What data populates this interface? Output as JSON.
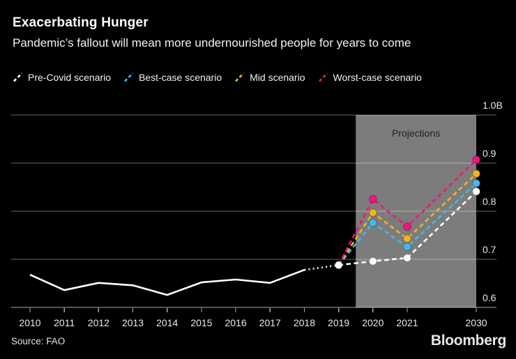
{
  "header": {
    "title": "Exacerbating Hunger",
    "subtitle": "Pandemic’s fallout will mean more undernourished people for years to come"
  },
  "legend": {
    "items": [
      {
        "label": "Pre-Covid scenario",
        "color": "#ffffff"
      },
      {
        "label": "Best-case scenario",
        "color": "#45b8e8"
      },
      {
        "label": "Mid scenario",
        "color": "#f2b322"
      },
      {
        "label": "Worst-case scenario",
        "color": "#f0147e"
      }
    ]
  },
  "chart_data": {
    "type": "line",
    "title": "Exacerbating Hunger",
    "unit": "billions of undernourished people",
    "ylim": [
      0.6,
      1.0
    ],
    "grid": true,
    "legend_position": "top",
    "yticks": [
      {
        "value": 1.0,
        "label": "1.0B"
      },
      {
        "value": 0.9,
        "label": "0.9"
      },
      {
        "value": 0.8,
        "label": "0.8"
      },
      {
        "value": 0.7,
        "label": "0.7"
      },
      {
        "value": 0.6,
        "label": "0.6"
      }
    ],
    "xticks": [
      2010,
      2011,
      2012,
      2013,
      2014,
      2015,
      2016,
      2017,
      2018,
      2019,
      2020,
      2021,
      2030
    ],
    "projection": {
      "label": "Projections",
      "from": 2019.5,
      "to": 2030,
      "band_color": "#7c7c7c",
      "label_color": "#212121"
    },
    "series": [
      {
        "name": "Best-case scenario",
        "color": "#45b8e8",
        "segments": [
          {
            "style": "dashed",
            "points": [
              [
                2019,
                0.688
              ],
              [
                2020,
                0.776
              ],
              [
                2021,
                0.726
              ],
              [
                2030,
                0.858
              ]
            ]
          }
        ],
        "markers": [
          [
            2020,
            0.776
          ],
          [
            2021,
            0.726
          ],
          [
            2030,
            0.858
          ]
        ]
      },
      {
        "name": "Mid scenario",
        "color": "#f2b322",
        "segments": [
          {
            "style": "dashed",
            "points": [
              [
                2019,
                0.688
              ],
              [
                2020,
                0.797
              ],
              [
                2021,
                0.743
              ],
              [
                2030,
                0.878
              ]
            ]
          }
        ],
        "markers": [
          [
            2020,
            0.797
          ],
          [
            2021,
            0.743
          ],
          [
            2030,
            0.878
          ]
        ]
      },
      {
        "name": "Worst-case scenario",
        "color": "#f0147e",
        "segments": [
          {
            "style": "dashed",
            "points": [
              [
                2019,
                0.688
              ],
              [
                2020,
                0.825
              ],
              [
                2021,
                0.768
              ],
              [
                2030,
                0.907
              ]
            ]
          }
        ],
        "markers": [
          [
            2020,
            0.825
          ],
          [
            2021,
            0.768
          ],
          [
            2030,
            0.907
          ]
        ]
      },
      {
        "name": "Pre-Covid scenario",
        "color": "#ffffff",
        "segments": [
          {
            "style": "solid",
            "points": [
              [
                2010,
                0.668
              ],
              [
                2011,
                0.636
              ],
              [
                2012,
                0.651
              ],
              [
                2013,
                0.646
              ],
              [
                2014,
                0.626
              ],
              [
                2015,
                0.652
              ],
              [
                2016,
                0.658
              ],
              [
                2017,
                0.651
              ],
              [
                2018,
                0.678
              ]
            ]
          },
          {
            "style": "dotted",
            "points": [
              [
                2018,
                0.678
              ],
              [
                2019,
                0.688
              ]
            ]
          },
          {
            "style": "dashed",
            "points": [
              [
                2019,
                0.688
              ],
              [
                2020,
                0.696
              ],
              [
                2021,
                0.703
              ],
              [
                2030,
                0.841
              ]
            ]
          }
        ],
        "markers": [
          [
            2019,
            0.688
          ],
          [
            2020,
            0.696
          ],
          [
            2021,
            0.703
          ],
          [
            2030,
            0.841
          ]
        ]
      }
    ]
  },
  "footer": {
    "source": "Source: FAO",
    "brand": "Bloomberg"
  }
}
